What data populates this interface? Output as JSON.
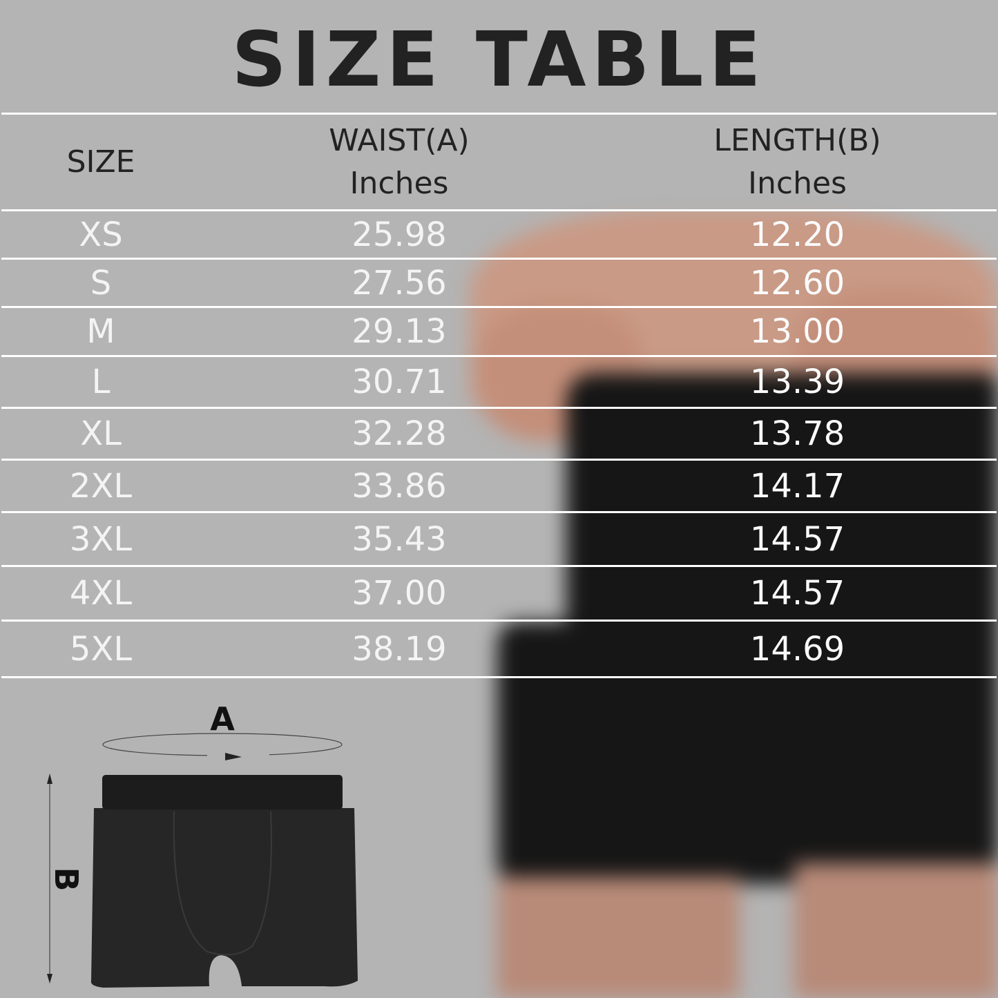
{
  "title": "SIZE TABLE",
  "headers": {
    "size": "SIZE",
    "waist": "WAIST(A)",
    "waist_unit": "Inches",
    "length": "LENGTH(B)",
    "length_unit": "Inches"
  },
  "rows": [
    {
      "size": "XS",
      "waist": "25.98",
      "length": "12.20"
    },
    {
      "size": "S",
      "waist": "27.56",
      "length": "12.60"
    },
    {
      "size": "M",
      "waist": "29.13",
      "length": "13.00"
    },
    {
      "size": "L",
      "waist": "30.71",
      "length": "13.39"
    },
    {
      "size": "XL",
      "waist": "32.28",
      "length": "13.78"
    },
    {
      "size": "2XL",
      "waist": "33.86",
      "length": "14.17"
    },
    {
      "size": "3XL",
      "waist": "35.43",
      "length": "14.57"
    },
    {
      "size": "4XL",
      "waist": "37.00",
      "length": "14.57"
    },
    {
      "size": "5XL",
      "waist": "38.19",
      "length": "14.69"
    }
  ],
  "diagram": {
    "label_a": "A",
    "label_b": "B"
  }
}
